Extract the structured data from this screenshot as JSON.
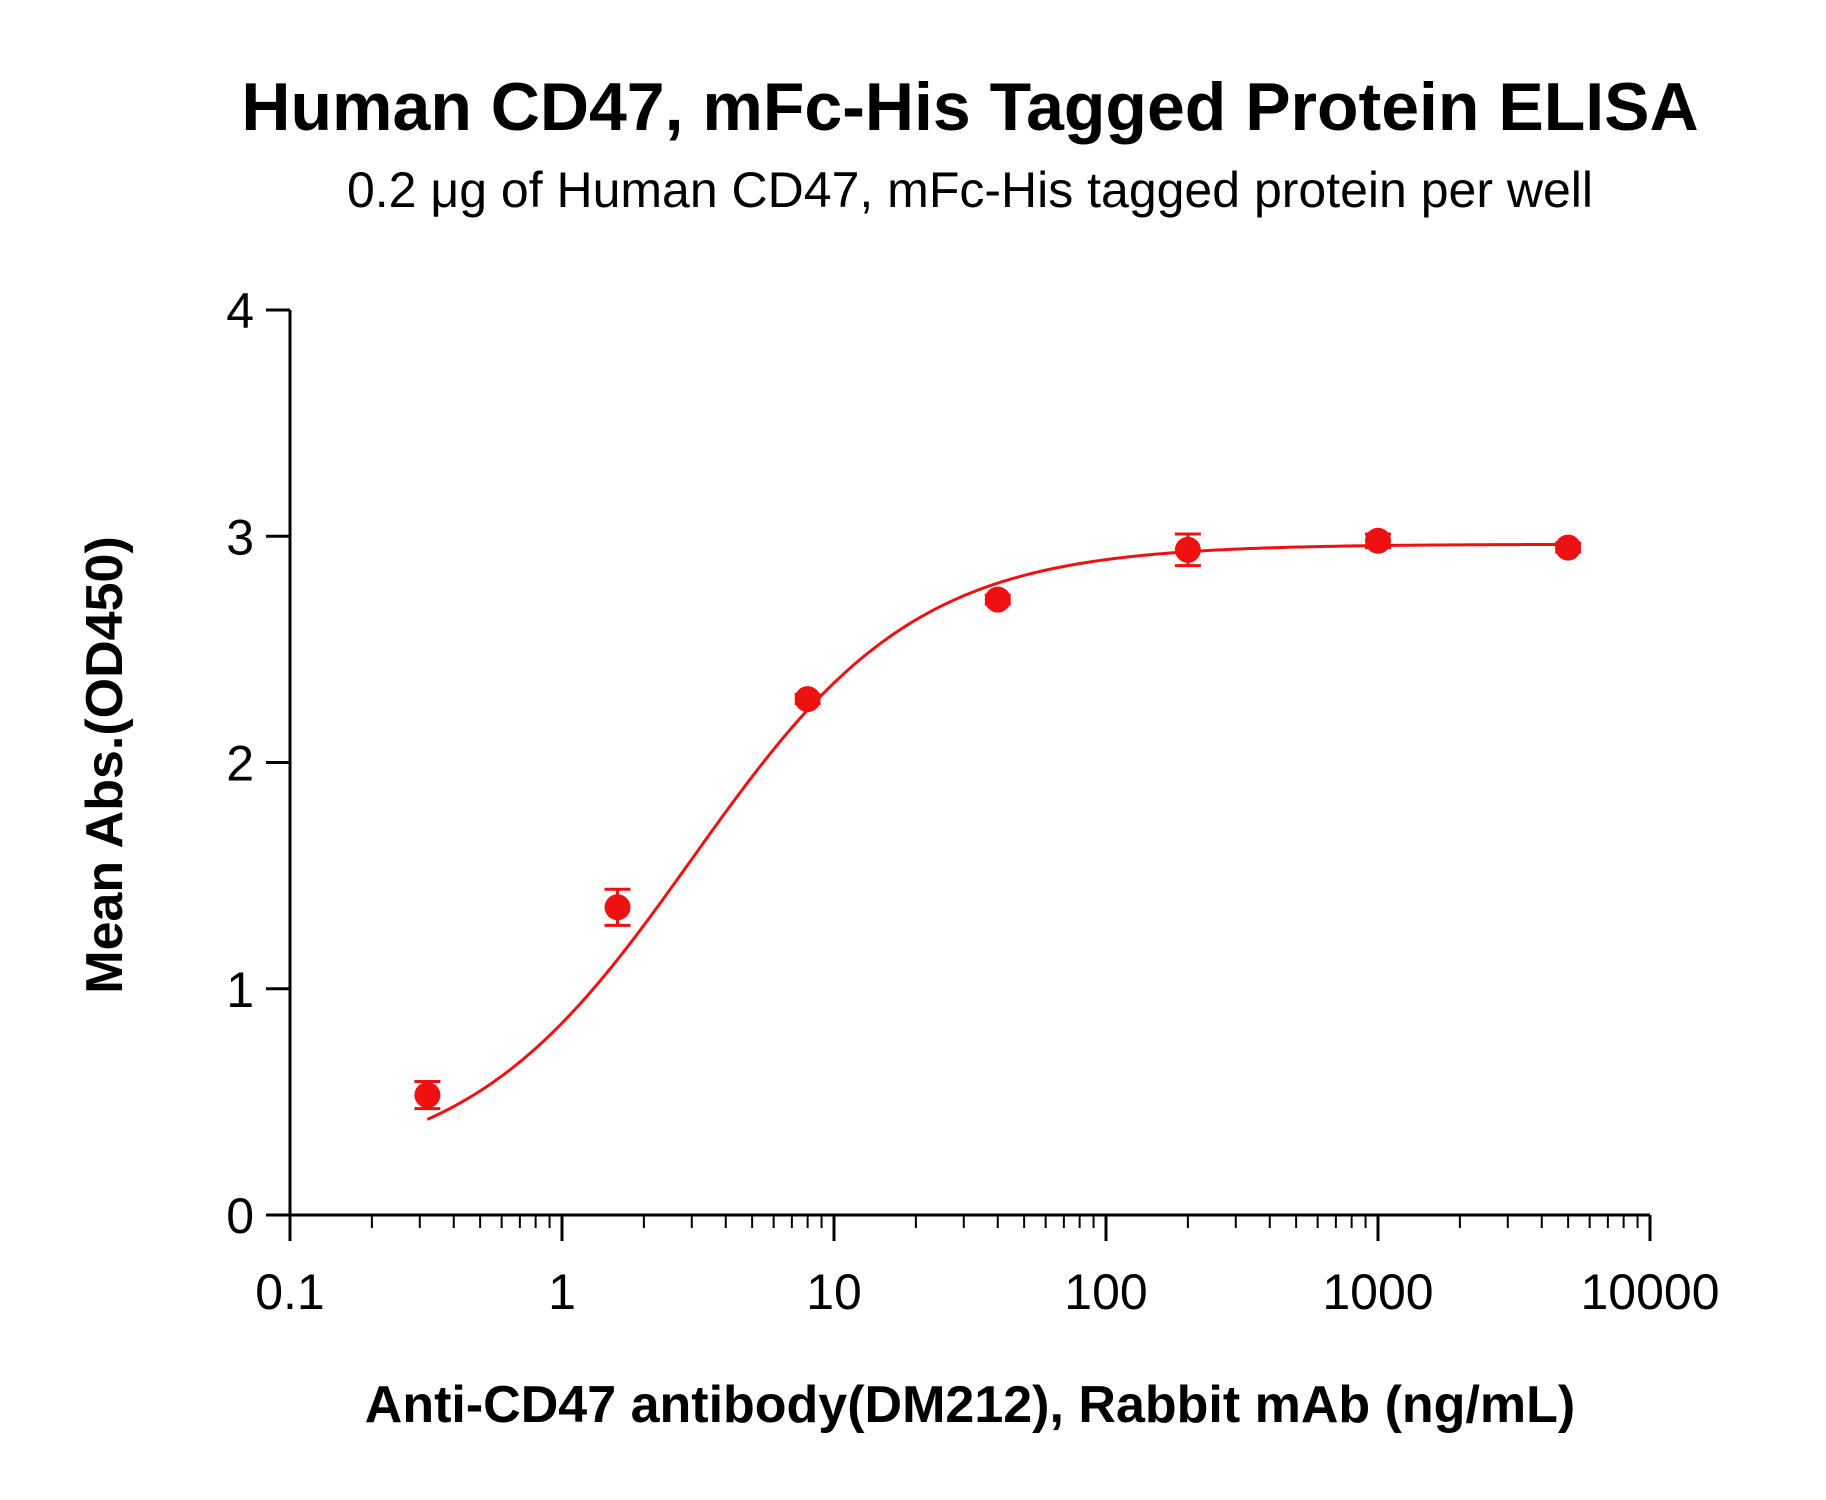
{
  "chart_data": {
    "type": "scatter",
    "title": "Human CD47, mFc-His Tagged Protein ELISA",
    "subtitle": "0.2 μg of Human CD47, mFc-His tagged protein per well",
    "xlabel": "Anti-CD47 antibody(DM212), Rabbit mAb (ng/mL)",
    "ylabel": "Mean Abs.(OD450)",
    "x_scale": "log",
    "xlim": [
      0.1,
      10000
    ],
    "ylim": [
      0,
      4
    ],
    "x_ticks": [
      0.1,
      1,
      10,
      100,
      1000,
      10000
    ],
    "x_tick_labels": [
      "0.1",
      "1",
      "10",
      "100",
      "1000",
      "10000"
    ],
    "y_ticks": [
      0,
      1,
      2,
      3,
      4
    ],
    "y_tick_labels": [
      "0",
      "1",
      "2",
      "3",
      "4"
    ],
    "grid": false,
    "color": "#ee1111",
    "series": [
      {
        "x": [
          0.32,
          1.6,
          8,
          40,
          200,
          1000,
          5000
        ],
        "y": [
          0.53,
          1.36,
          2.28,
          2.72,
          2.94,
          2.98,
          2.95
        ],
        "error": [
          0.06,
          0.08,
          0.02,
          0.02,
          0.07,
          0.03,
          0.02
        ],
        "fit": "four-parameter logistic"
      }
    ]
  }
}
